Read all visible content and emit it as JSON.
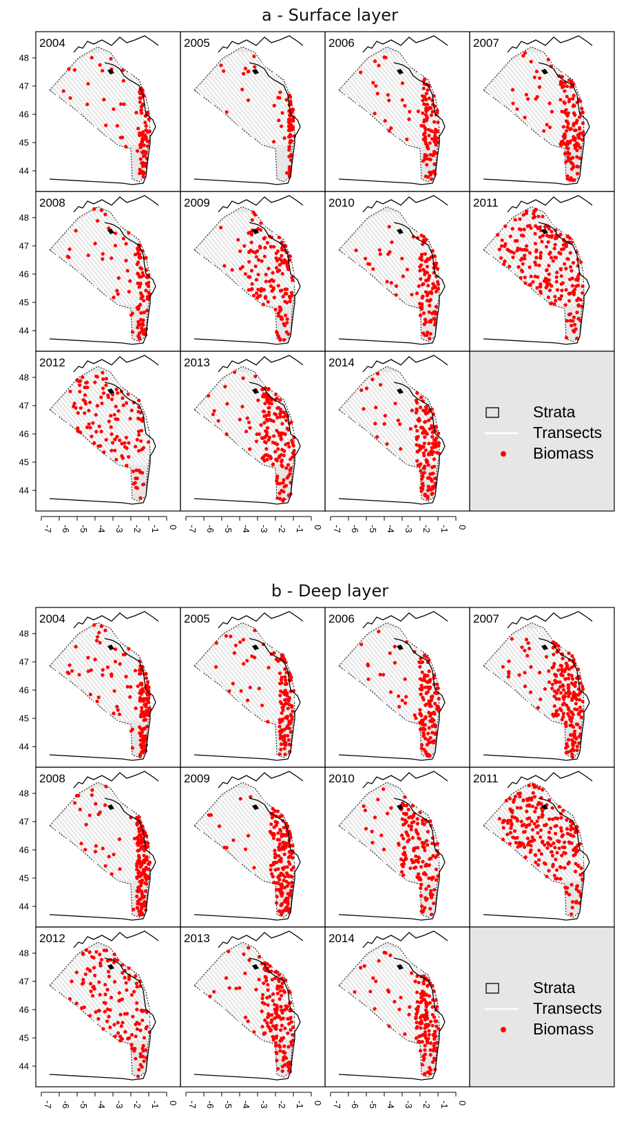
{
  "sections": [
    {
      "title": "a - Surface layer",
      "panels": [
        {
          "year": "2004",
          "seed": 11,
          "level": 0.28,
          "spread": 0.15
        },
        {
          "year": "2005",
          "seed": 12,
          "level": 0.2,
          "spread": 0.1
        },
        {
          "year": "2006",
          "seed": 13,
          "level": 0.4,
          "spread": 0.22
        },
        {
          "year": "2007",
          "seed": 14,
          "level": 0.5,
          "spread": 0.3
        },
        {
          "year": "2008",
          "seed": 15,
          "level": 0.33,
          "spread": 0.18
        },
        {
          "year": "2009",
          "seed": 16,
          "level": 0.52,
          "spread": 0.55
        },
        {
          "year": "2010",
          "seed": 17,
          "level": 0.36,
          "spread": 0.25
        },
        {
          "year": "2011",
          "seed": 18,
          "level": 0.85,
          "spread": 0.95
        },
        {
          "year": "2012",
          "seed": 19,
          "level": 0.4,
          "spread": 0.9
        },
        {
          "year": "2013",
          "seed": 20,
          "level": 0.62,
          "spread": 0.4
        },
        {
          "year": "2014",
          "seed": 21,
          "level": 0.55,
          "spread": 0.3
        }
      ]
    },
    {
      "title": "b - Deep layer",
      "panels": [
        {
          "year": "2004",
          "seed": 31,
          "level": 0.55,
          "spread": 0.15
        },
        {
          "year": "2005",
          "seed": 32,
          "level": 0.4,
          "spread": 0.2
        },
        {
          "year": "2006",
          "seed": 33,
          "level": 0.45,
          "spread": 0.25
        },
        {
          "year": "2007",
          "seed": 34,
          "level": 0.75,
          "spread": 0.4
        },
        {
          "year": "2008",
          "seed": 35,
          "level": 0.62,
          "spread": 0.18
        },
        {
          "year": "2009",
          "seed": 36,
          "level": 0.62,
          "spread": 0.3
        },
        {
          "year": "2010",
          "seed": 37,
          "level": 0.55,
          "spread": 0.45
        },
        {
          "year": "2011",
          "seed": 38,
          "level": 0.9,
          "spread": 0.95
        },
        {
          "year": "2012",
          "seed": 39,
          "level": 0.45,
          "spread": 0.8
        },
        {
          "year": "2013",
          "seed": 40,
          "level": 0.62,
          "spread": 0.4
        },
        {
          "year": "2014",
          "seed": 41,
          "level": 0.55,
          "spread": 0.3
        }
      ]
    }
  ],
  "legend": [
    {
      "key": "strata",
      "label": "Strata"
    },
    {
      "key": "transects",
      "label": "Transects"
    },
    {
      "key": "biomass",
      "label": "Biomass"
    }
  ],
  "axes": {
    "lat_ticks": [
      "48",
      "47",
      "46",
      "45",
      "44"
    ],
    "lon_ticks": [
      "-7",
      "-6",
      "-5",
      "-4",
      "-3",
      "-2",
      "-1",
      "0"
    ],
    "lon_range": [
      -7,
      0
    ],
    "lat_range": [
      43.2,
      48.8
    ]
  },
  "colors": {
    "strata_fill": "#e6e6e6",
    "transect": "#ffffff",
    "biomass": "#ff0000",
    "coast": "#000000",
    "legend_panel": "#e6e6e6"
  }
}
